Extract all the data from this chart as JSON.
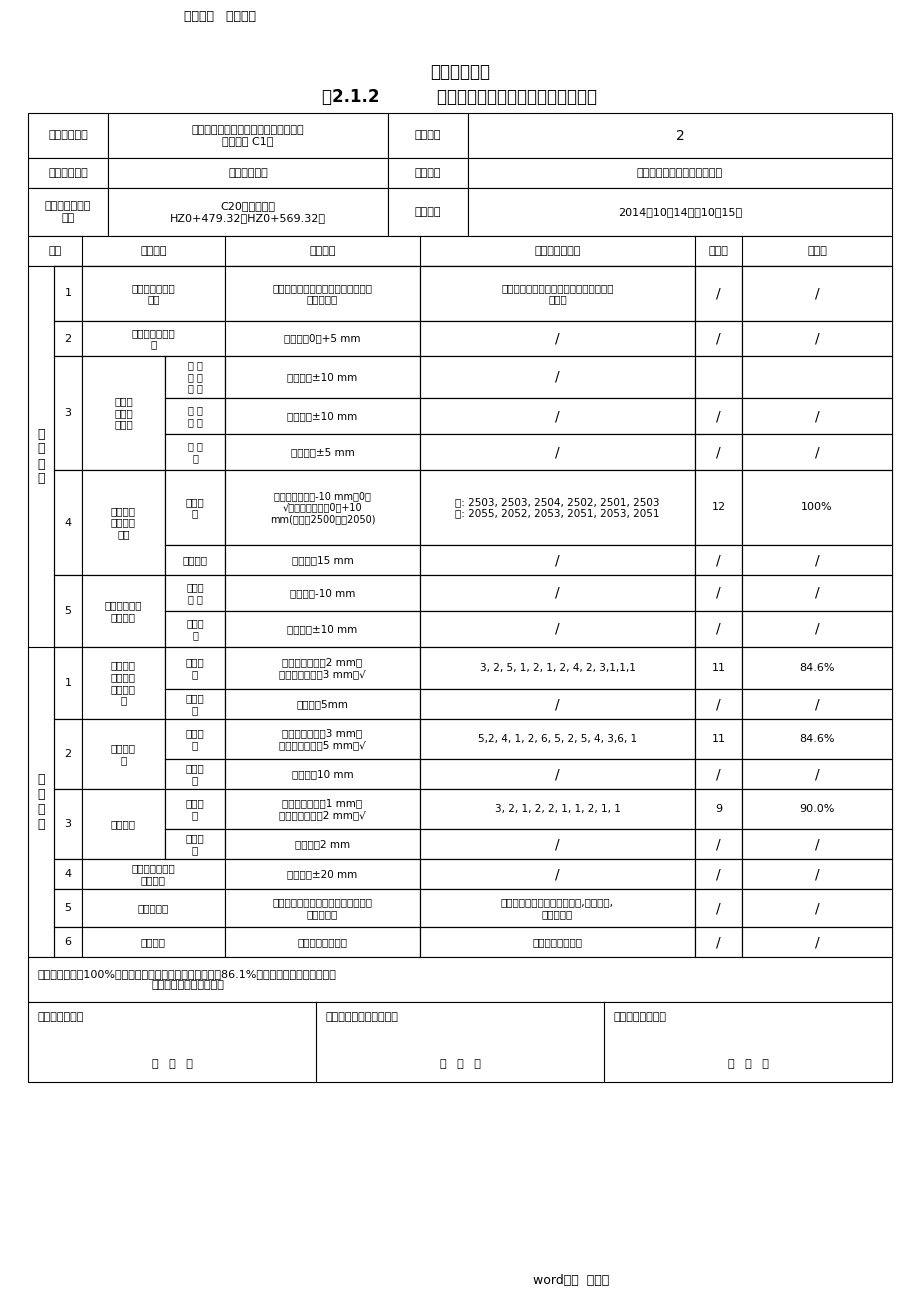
{
  "watermark": "范文范例   值得参考",
  "title_main": "水利水电工程",
  "title_sub": "表2.1.2          模板制作及安装工序施工质量自检表",
  "footer": "word完美  整理版",
  "unit_name": "泉州市晋江防洪工程（一期）永春湖洋\n莲莱堤段 C1标",
  "process_num": "2",
  "dept_name": "左岸堤防工程",
  "construction_unit": "三明市水利水电工程有限公司",
  "element_name": "C20埋石砼挡墙\nHZ0+479.32～HZ0+569.32段",
  "construction_date": "2014年10月14日～10月15日",
  "bottom_note1": "主控项目检验点100%合格，一般项目逐项检验点的合格率86.1%，且不合格点不集中分布。",
  "bottom_note2": "工序质量等级评定：合格",
  "sign1": "班组初检意见：",
  "sign2": "施工队（员）复检意见：",
  "sign3": "质检员终检意见：",
  "date_str": "年   月   日"
}
